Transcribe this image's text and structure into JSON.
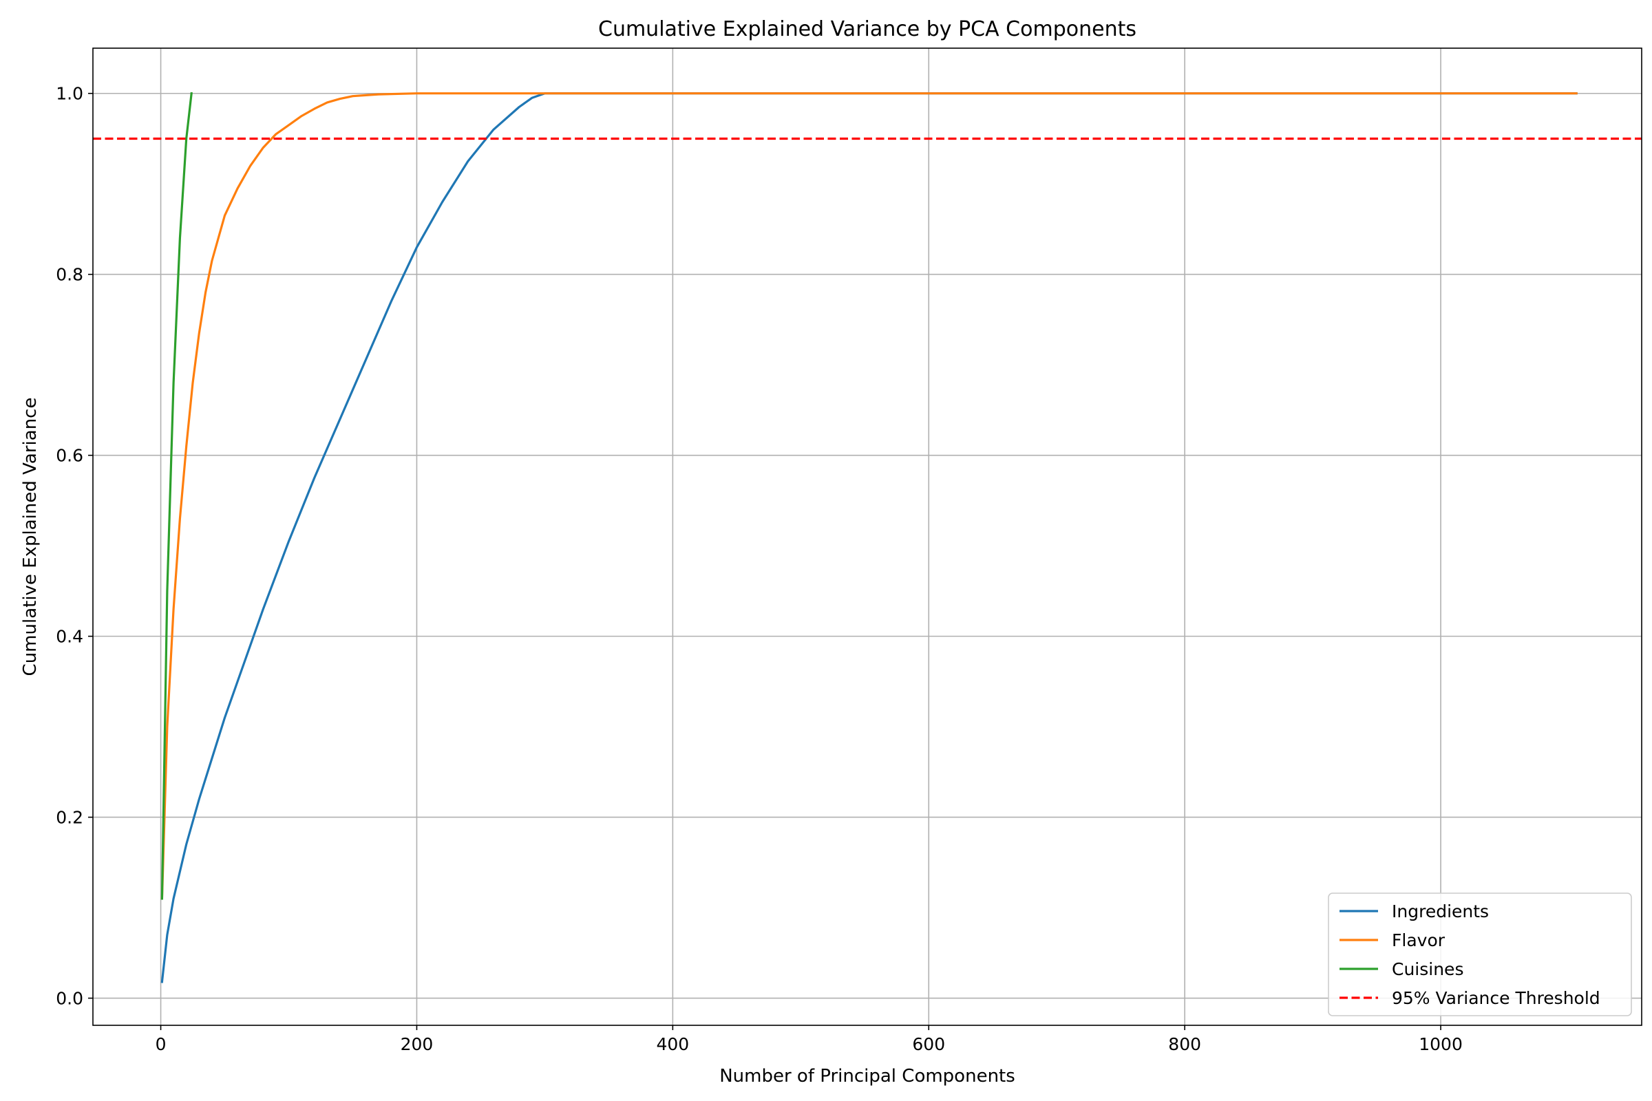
{
  "chart_data": {
    "type": "line",
    "title": "Cumulative Explained Variance by PCA Components",
    "xlabel": "Number of Principal Components",
    "ylabel": "Cumulative Explained Variance",
    "xlim": [
      -53,
      1157
    ],
    "ylim": [
      -0.03,
      1.05
    ],
    "xticks": [
      0,
      200,
      400,
      600,
      800,
      1000
    ],
    "yticks": [
      0.0,
      0.2,
      0.4,
      0.6,
      0.8,
      1.0
    ],
    "xtick_labels": [
      "0",
      "200",
      "400",
      "600",
      "800",
      "1000"
    ],
    "ytick_labels": [
      "0.0",
      "0.2",
      "0.4",
      "0.6",
      "0.8",
      "1.0"
    ],
    "grid": true,
    "legend_position": "lower-right",
    "series": [
      {
        "name": "Ingredients",
        "color": "#1f77b4",
        "style": "solid",
        "x": [
          1,
          5,
          10,
          20,
          30,
          40,
          50,
          60,
          80,
          100,
          120,
          140,
          160,
          180,
          200,
          220,
          240,
          260,
          280,
          290,
          300,
          310,
          400,
          600,
          800,
          1000,
          1106
        ],
        "y": [
          0.018,
          0.07,
          0.11,
          0.17,
          0.22,
          0.265,
          0.31,
          0.35,
          0.43,
          0.505,
          0.575,
          0.64,
          0.705,
          0.77,
          0.83,
          0.88,
          0.925,
          0.96,
          0.985,
          0.995,
          1.0,
          1.0,
          1.0,
          1.0,
          1.0,
          1.0,
          1.0
        ]
      },
      {
        "name": "Flavor",
        "color": "#ff7f0e",
        "style": "solid",
        "x": [
          1,
          5,
          10,
          15,
          20,
          25,
          30,
          35,
          40,
          50,
          60,
          70,
          80,
          90,
          100,
          110,
          120,
          130,
          140,
          150,
          160,
          170,
          200,
          250,
          300,
          400,
          600,
          800,
          1000,
          1106
        ],
        "y": [
          0.11,
          0.3,
          0.43,
          0.53,
          0.61,
          0.68,
          0.735,
          0.78,
          0.815,
          0.865,
          0.895,
          0.92,
          0.94,
          0.955,
          0.965,
          0.975,
          0.983,
          0.99,
          0.994,
          0.997,
          0.998,
          0.999,
          1.0,
          1.0,
          1.0,
          1.0,
          1.0,
          1.0,
          1.0,
          1.0
        ]
      },
      {
        "name": "Cuisines",
        "color": "#2ca02c",
        "style": "solid",
        "x": [
          1,
          5,
          10,
          15,
          20,
          24
        ],
        "y": [
          0.11,
          0.45,
          0.68,
          0.84,
          0.95,
          1.0
        ]
      },
      {
        "name": "95% Variance Threshold",
        "color": "#ff0000",
        "style": "dashed",
        "type": "hline",
        "y": 0.95
      }
    ]
  }
}
